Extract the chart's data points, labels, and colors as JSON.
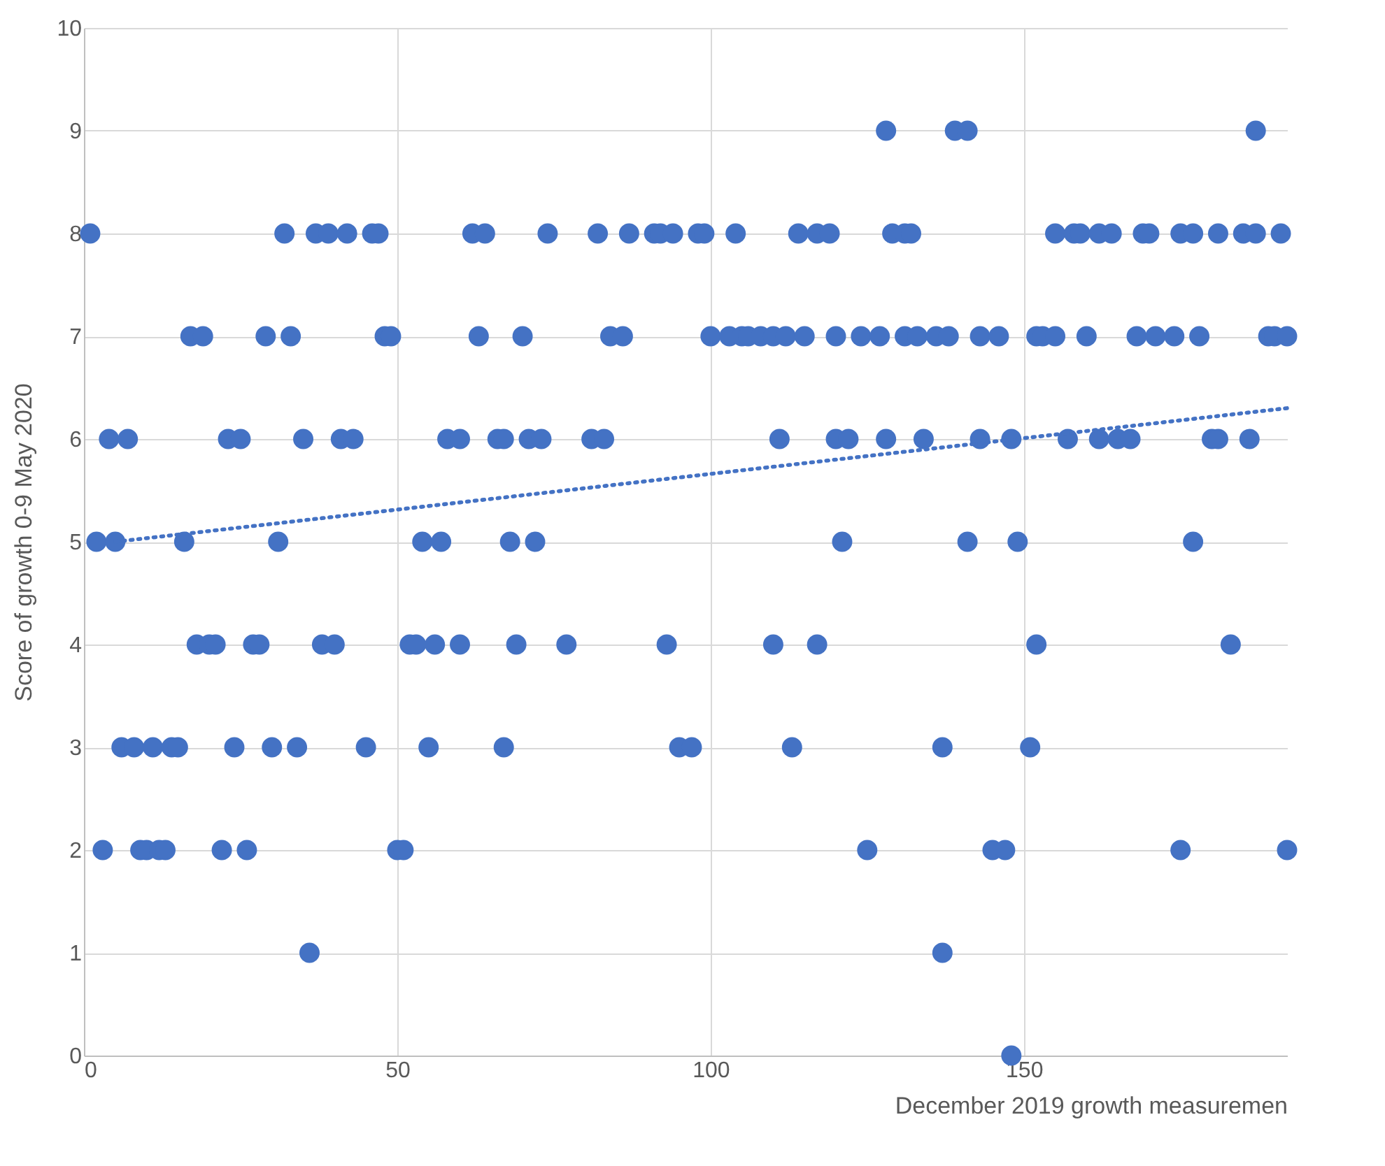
{
  "chart_data": {
    "type": "scatter",
    "xlabel": "December 2019 growth measuremen",
    "ylabel": "Score of growth 0-9 May 2020",
    "xlim": [
      0,
      192
    ],
    "xticks": [
      0,
      50,
      100,
      150
    ],
    "ylim": [
      0,
      10
    ],
    "yticks": [
      0,
      1,
      2,
      3,
      4,
      5,
      6,
      7,
      8,
      9,
      10
    ],
    "grid": true,
    "series": [
      {
        "color": "#4472c4",
        "marker": "circle",
        "x": [
          1,
          2,
          3,
          4,
          5,
          6,
          7,
          8,
          9,
          10,
          11,
          12,
          13,
          14,
          15,
          16,
          17,
          18,
          19,
          20,
          21,
          22,
          23,
          24,
          25,
          26,
          27,
          28,
          29,
          30,
          31,
          32,
          33,
          34,
          35,
          36,
          37,
          38,
          39,
          40,
          41,
          42,
          43,
          45,
          46,
          47,
          48,
          49,
          50,
          51,
          52,
          53,
          54,
          55,
          56,
          57,
          58,
          60,
          60,
          62,
          63,
          64,
          66,
          67,
          67,
          68,
          69,
          70,
          71,
          72,
          73,
          74,
          77,
          81,
          82,
          83,
          84,
          86,
          87,
          91,
          92,
          93,
          94,
          95,
          97,
          98,
          99,
          100,
          103,
          104,
          105,
          106,
          108,
          110,
          110,
          111,
          112,
          113,
          114,
          115,
          117,
          117,
          119,
          120,
          120,
          121,
          122,
          124,
          125,
          127,
          128,
          128,
          129,
          131,
          131,
          132,
          133,
          134,
          136,
          137,
          137,
          138,
          139,
          141,
          141,
          143,
          143,
          145,
          146,
          147,
          148,
          148,
          149,
          151,
          152,
          152,
          153,
          155,
          155,
          157,
          158,
          159,
          160,
          162,
          162,
          164,
          165,
          167,
          168,
          169,
          170,
          171,
          174,
          175,
          175,
          177,
          177,
          178,
          180,
          181,
          181,
          183,
          185,
          186,
          187,
          187,
          189,
          190,
          191,
          192,
          192
        ],
        "values": [
          8,
          5,
          2,
          6,
          5,
          3,
          6,
          3,
          2,
          2,
          3,
          2,
          2,
          3,
          3,
          5,
          7,
          4,
          7,
          4,
          4,
          2,
          6,
          3,
          6,
          2,
          4,
          4,
          7,
          3,
          5,
          8,
          7,
          3,
          6,
          1,
          8,
          4,
          8,
          4,
          6,
          8,
          6,
          3,
          8,
          8,
          7,
          7,
          2,
          2,
          4,
          4,
          5,
          3,
          4,
          5,
          6,
          6,
          4,
          8,
          7,
          8,
          6,
          6,
          3,
          5,
          4,
          7,
          6,
          5,
          6,
          8,
          4,
          6,
          8,
          6,
          7,
          7,
          8,
          8,
          8,
          4,
          8,
          3,
          3,
          8,
          8,
          7,
          7,
          8,
          7,
          7,
          7,
          7,
          4,
          6,
          7,
          3,
          8,
          7,
          8,
          4,
          8,
          7,
          6,
          5,
          6,
          7,
          2,
          7,
          6,
          9,
          8,
          7,
          8,
          8,
          7,
          6,
          7,
          3,
          1,
          7,
          9,
          9,
          5,
          7,
          6,
          2,
          7,
          2,
          6,
          0,
          5,
          3,
          4,
          7,
          7,
          7,
          8,
          6,
          8,
          8,
          7,
          6,
          8,
          8,
          6,
          6,
          7,
          8,
          8,
          7,
          7,
          8,
          2,
          8,
          5,
          7,
          6,
          6,
          8,
          4,
          8,
          6,
          8,
          9,
          7,
          7,
          8,
          7,
          2
        ]
      },
      {
        "type": "line",
        "color": "#4472c4",
        "line_style": "dotted",
        "x": [
          5,
          192
        ],
        "values": [
          5.0,
          6.3
        ]
      }
    ]
  }
}
